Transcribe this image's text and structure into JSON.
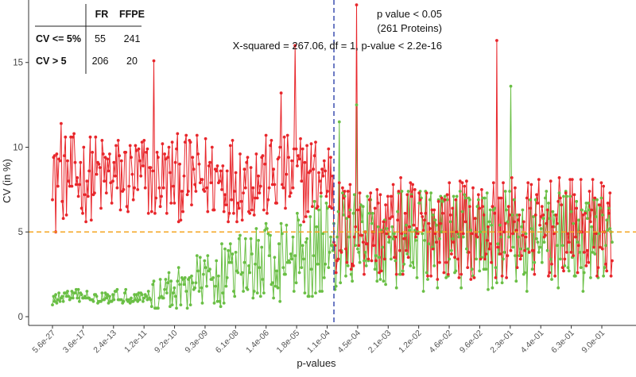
{
  "chart_data": {
    "type": "line",
    "xlabel": "p-values",
    "ylabel": "CV (in %)",
    "ylim": [
      0,
      18.5
    ],
    "yticks": [
      0,
      5,
      10,
      15
    ],
    "x_tick_labels": [
      "5.6e-27",
      "3.6e-17",
      "2.4e-13",
      "1.2e-11",
      "9.2e-10",
      "9.3e-09",
      "6.1e-08",
      "1.4e-06",
      "1.8e-05",
      "1.1e-04",
      "4.5e-04",
      "2.1e-03",
      "1.2e-02",
      "4.6e-02",
      "9.6e-02",
      "2.3e-01",
      "4.4e-01",
      "6.3e-01",
      "9.0e-01"
    ],
    "grid": false,
    "reference_lines": [
      {
        "axis": "y",
        "value": 5,
        "color": "#f5a623",
        "style": "dashed"
      },
      {
        "axis": "x",
        "value": 261,
        "color": "#3c4fb0",
        "style": "dashed"
      }
    ],
    "n_proteins": 520,
    "series": [
      {
        "name": "FR",
        "color": "#e8262b",
        "start_values": [
          6.9,
          9.4,
          9.5,
          5.0,
          9.6,
          7.7,
          9.3,
          9.2,
          11.4,
          6.8
        ],
        "mean": 8.2,
        "spread": 2.6,
        "peaks": [
          [
            94,
            15.1
          ],
          [
            212,
            13.2
          ],
          [
            225,
            16.0
          ],
          [
            282,
            18.4
          ],
          [
            412,
            16.3
          ]
        ]
      },
      {
        "name": "FFPE",
        "color": "#6abf45",
        "start_values": [
          0.7,
          1.2,
          0.9,
          1.3,
          0.8,
          1.0,
          1.4,
          0.9,
          1.1,
          1.2
        ],
        "mean": 1.4,
        "spread": 0.6,
        "peaks": [
          [
            266,
            11.5
          ],
          [
            282,
            12.5
          ],
          [
            425,
            13.6
          ]
        ]
      }
    ],
    "table": {
      "col_headers": [
        "FR",
        "FFPE"
      ],
      "rows": [
        {
          "label": "CV <= 5%",
          "values": [
            "55",
            "241"
          ]
        },
        {
          "label": "CV > 5",
          "values": [
            "206",
            "20"
          ]
        }
      ]
    },
    "annotations": {
      "line1": "p value < 0.05",
      "line2": "(261 Proteins)",
      "line3": "X-squared = 267.06, df = 1, p-value < 2.2e-16"
    }
  }
}
